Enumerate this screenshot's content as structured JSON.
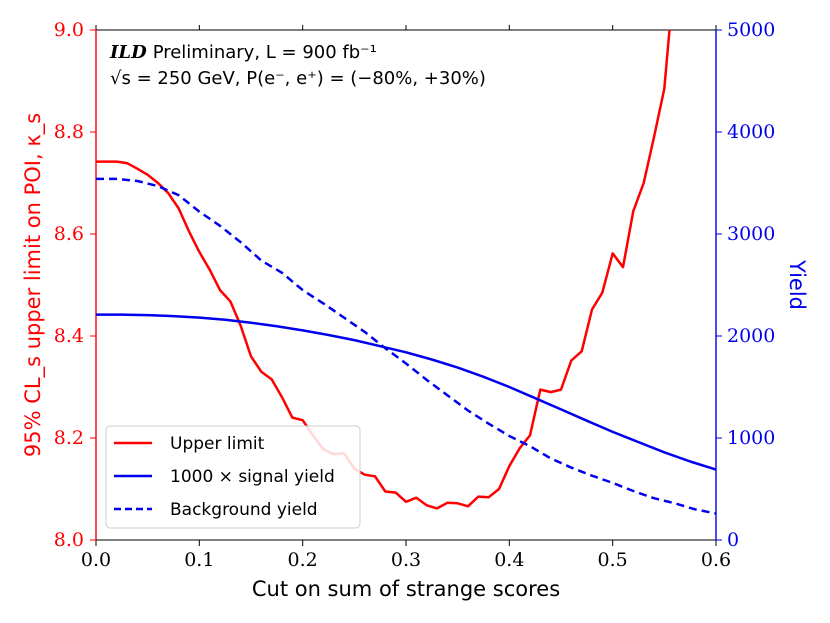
{
  "chart_data": {
    "type": "line",
    "xlabel": "Cut on sum of strange scores",
    "ylabel_left": "95% CL_s upper limit on POI, κ_s",
    "ylabel_right": "Yield",
    "xlim": [
      0.0,
      0.6
    ],
    "ylim_left": [
      8.0,
      9.0
    ],
    "ylim_right": [
      0,
      5000
    ],
    "x_ticks": [
      "0.0",
      "0.1",
      "0.2",
      "0.3",
      "0.4",
      "0.5",
      "0.6"
    ],
    "y_left_ticks": [
      "8.0",
      "8.2",
      "8.4",
      "8.6",
      "8.8",
      "9.0"
    ],
    "y_right_ticks": [
      "0",
      "1000",
      "2000",
      "3000",
      "4000",
      "5000"
    ],
    "annotation": {
      "line1_bold": "ILD",
      "line1_rest": "Preliminary, L = 900 fb⁻¹",
      "line2": "√s = 250 GeV, P(e⁻, e⁺) = (−80%, +30%)"
    },
    "legend": [
      "Upper limit",
      "1000 × signal yield",
      "Background yield"
    ],
    "legend_position": "lower-left",
    "colors": {
      "upper_limit": "#ff0000",
      "signal": "#0000ee",
      "background": "#0000ee",
      "left_axis": "#ff0000",
      "right_axis": "#0000ee"
    },
    "series": [
      {
        "name": "Upper limit",
        "axis": "left",
        "style": "solid",
        "x": [
          0.0,
          0.01,
          0.02,
          0.03,
          0.04,
          0.05,
          0.06,
          0.07,
          0.08,
          0.09,
          0.1,
          0.11,
          0.12,
          0.13,
          0.14,
          0.15,
          0.16,
          0.17,
          0.18,
          0.19,
          0.2,
          0.21,
          0.22,
          0.23,
          0.24,
          0.25,
          0.26,
          0.27,
          0.28,
          0.29,
          0.3,
          0.31,
          0.32,
          0.33,
          0.34,
          0.35,
          0.36,
          0.37,
          0.38,
          0.39,
          0.4,
          0.41,
          0.42,
          0.43,
          0.44,
          0.45,
          0.46,
          0.47,
          0.48,
          0.49,
          0.5,
          0.51,
          0.52,
          0.53,
          0.54,
          0.55,
          0.555
        ],
        "values": [
          8.742,
          8.742,
          8.742,
          8.739,
          8.728,
          8.716,
          8.7,
          8.68,
          8.65,
          8.605,
          8.565,
          8.53,
          8.49,
          8.468,
          8.42,
          8.36,
          8.33,
          8.315,
          8.28,
          8.24,
          8.235,
          8.205,
          8.178,
          8.168,
          8.17,
          8.14,
          8.128,
          8.125,
          8.095,
          8.093,
          8.075,
          8.083,
          8.068,
          8.062,
          8.073,
          8.072,
          8.066,
          8.085,
          8.084,
          8.1,
          8.145,
          8.18,
          8.205,
          8.295,
          8.29,
          8.295,
          8.352,
          8.37,
          8.452,
          8.485,
          8.562,
          8.535,
          8.645,
          8.7,
          8.79,
          8.885,
          9.0
        ]
      },
      {
        "name": "1000 × signal yield",
        "axis": "right",
        "style": "solid",
        "x": [
          0.0,
          0.025,
          0.05,
          0.075,
          0.1,
          0.125,
          0.15,
          0.175,
          0.2,
          0.225,
          0.25,
          0.275,
          0.3,
          0.325,
          0.35,
          0.375,
          0.4,
          0.425,
          0.45,
          0.475,
          0.5,
          0.525,
          0.55,
          0.575,
          0.6
        ],
        "values": [
          2210,
          2210,
          2205,
          2195,
          2180,
          2160,
          2130,
          2095,
          2055,
          2010,
          1960,
          1900,
          1840,
          1770,
          1690,
          1600,
          1500,
          1390,
          1280,
          1170,
          1060,
          960,
          860,
          770,
          690
        ]
      },
      {
        "name": "Background yield",
        "axis": "right",
        "style": "dashed",
        "x": [
          0.0,
          0.02,
          0.04,
          0.06,
          0.08,
          0.1,
          0.12,
          0.14,
          0.16,
          0.18,
          0.2,
          0.22,
          0.24,
          0.26,
          0.28,
          0.3,
          0.32,
          0.34,
          0.36,
          0.38,
          0.4,
          0.42,
          0.44,
          0.46,
          0.48,
          0.5,
          0.52,
          0.54,
          0.56,
          0.58,
          0.6
        ],
        "values": [
          3540,
          3540,
          3520,
          3470,
          3380,
          3220,
          3080,
          2920,
          2740,
          2620,
          2450,
          2320,
          2180,
          2040,
          1880,
          1730,
          1570,
          1420,
          1270,
          1140,
          1020,
          920,
          800,
          710,
          630,
          560,
          480,
          410,
          360,
          300,
          260
        ]
      }
    ]
  }
}
